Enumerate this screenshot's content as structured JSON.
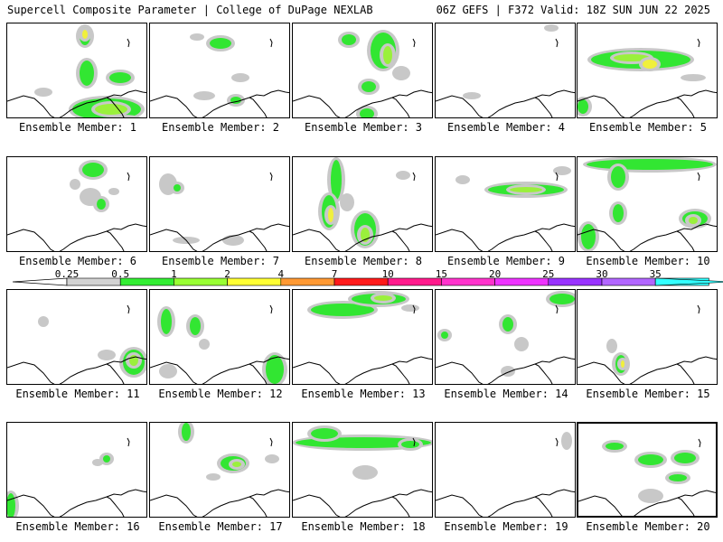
{
  "header": {
    "left": "Supercell Composite Parameter | College of DuPage NEXLAB",
    "right": "06Z GEFS | F372 Valid: 18Z SUN JUN 22 2025"
  },
  "members": [
    {
      "label": "Ensemble Member: 1"
    },
    {
      "label": "Ensemble Member: 2"
    },
    {
      "label": "Ensemble Member: 3"
    },
    {
      "label": "Ensemble Member: 4"
    },
    {
      "label": "Ensemble Member: 5"
    },
    {
      "label": "Ensemble Member: 6"
    },
    {
      "label": "Ensemble Member: 7"
    },
    {
      "label": "Ensemble Member: 8"
    },
    {
      "label": "Ensemble Member: 9"
    },
    {
      "label": "Ensemble Member: 10"
    },
    {
      "label": "Ensemble Member: 11"
    },
    {
      "label": "Ensemble Member: 12"
    },
    {
      "label": "Ensemble Member: 13"
    },
    {
      "label": "Ensemble Member: 14"
    },
    {
      "label": "Ensemble Member: 15"
    },
    {
      "label": "Ensemble Member: 16"
    },
    {
      "label": "Ensemble Member: 17"
    },
    {
      "label": "Ensemble Member: 18"
    },
    {
      "label": "Ensemble Member: 19"
    },
    {
      "label": "Ensemble Member: 20",
      "selected": true
    }
  ],
  "colorbar": {
    "ticks": [
      "0.25",
      "0.5",
      "1",
      "2",
      "4",
      "7",
      "10",
      "15",
      "20",
      "25",
      "30",
      "35"
    ],
    "colors": [
      "#d3d3d3",
      "#33ee33",
      "#99ff33",
      "#ffff33",
      "#ff9933",
      "#ff1a1a",
      "#ff1a8c",
      "#ff33cc",
      "#ee33ff",
      "#9933ff",
      "#b266ff",
      "#33ffff"
    ]
  },
  "colors": {
    "gray": "#c8c8c8",
    "green": "#32e632",
    "lightgreen": "#9af03c",
    "yellow": "#f0f03c"
  }
}
